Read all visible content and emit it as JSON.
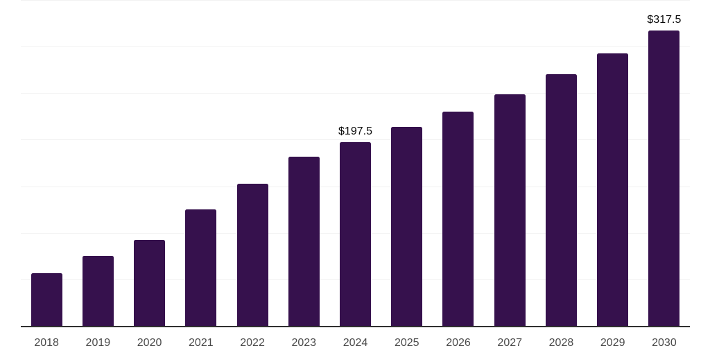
{
  "chart_data": {
    "type": "bar",
    "title": "",
    "xlabel": "",
    "ylabel": "",
    "categories": [
      "2018",
      "2019",
      "2020",
      "2021",
      "2022",
      "2023",
      "2024",
      "2025",
      "2026",
      "2027",
      "2028",
      "2029",
      "2030"
    ],
    "values": [
      56.5,
      75.5,
      92.5,
      125,
      152.5,
      182,
      197.5,
      214,
      230,
      248.5,
      270,
      292.5,
      317.5
    ],
    "data_labels": [
      {
        "index": 6,
        "text": "$197.5"
      },
      {
        "index": 12,
        "text": "$317.5"
      }
    ],
    "ylim": [
      0,
      350
    ],
    "gridline_step": 50,
    "grid": true,
    "legend": false,
    "colors": {
      "bar": "#36114D",
      "gridline": "#f2f2f2",
      "axis_line": "#303030",
      "tick_label": "#4a4a4a",
      "data_label": "#0a0a0a",
      "background": "#ffffff"
    }
  }
}
